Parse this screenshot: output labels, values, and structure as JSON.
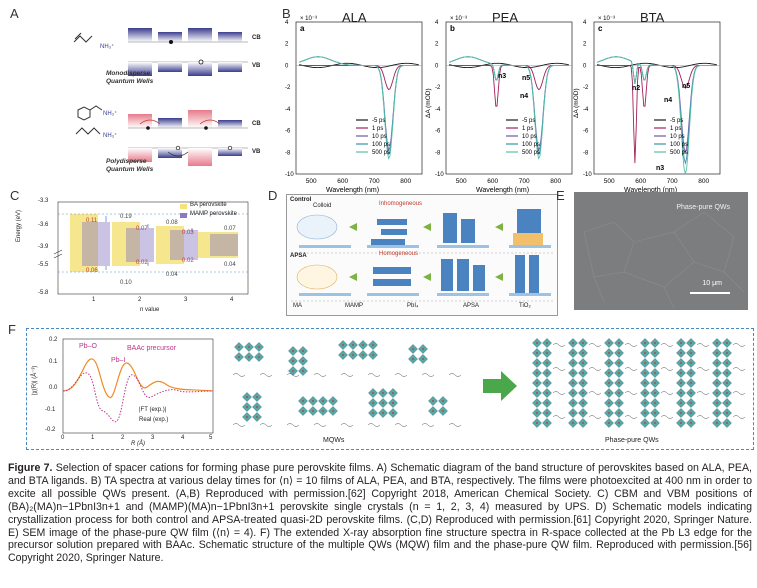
{
  "panels": {
    "a": {
      "letter": "A",
      "band_cb": "CB",
      "band_vb": "VB",
      "mono_label_1": "Monodisperse",
      "mono_label_2": "Quantum Wells",
      "poly_label_1": "Polydisperse",
      "poly_label_2": "Quantum Wells",
      "ligand_amine": "NH₃⁺"
    },
    "b": {
      "letter": "B",
      "titles": [
        "ALA",
        "PEA",
        "BTA"
      ],
      "sublabels": [
        "a",
        "b",
        "c"
      ],
      "scale_label": "× 10⁻³",
      "ylabel": "ΔA (mOD)",
      "xlabel": "Wavelength (nm)",
      "xticks": [
        "500",
        "600",
        "700",
        "800"
      ],
      "yticks": [
        "4",
        "2",
        "0",
        "-2",
        "-4",
        "-6",
        "-8",
        "-10"
      ],
      "legend": [
        "-5 ps",
        "1 ps",
        "10 ps",
        "100 ps",
        "500 ps"
      ],
      "pea_annotations": [
        "n3",
        "n5",
        "n4"
      ],
      "bta_annotations": [
        "n2",
        "n4",
        "n5",
        "n3"
      ]
    },
    "c": {
      "letter": "C",
      "ylabel": "Energy (eV)",
      "xlabel": "n value",
      "yticks": [
        "-3.3",
        "-3.6",
        "-3.9",
        "-5.5",
        "-5.8"
      ],
      "xticks": [
        "1",
        "2",
        "3",
        "4"
      ],
      "legend": [
        "BA perovskite",
        "MAMP perovskite"
      ],
      "values_top": [
        "0.11",
        "0.19",
        "0.07",
        "0.08",
        "0.03",
        "0.07"
      ],
      "values_bottom": [
        "0.06",
        "0.02",
        "0.02",
        "0.10",
        "0.04",
        "0.04"
      ]
    },
    "d": {
      "letter": "D",
      "row1": "Control",
      "row1_sub": "Colloid",
      "row1_title": "Inhomogeneous",
      "row2": "APSA",
      "row2_title": "Homogeneous",
      "legend": [
        "MA",
        "MAMP",
        "PbI₄",
        "APSA",
        "TiO₂"
      ]
    },
    "e": {
      "letter": "E",
      "title": "Phase-pure QWs",
      "scale": "10 μm"
    },
    "f": {
      "letter": "F",
      "ylabel": "|χ(R)| (Å⁻³)",
      "xlabel": "R (Å)",
      "yticks": [
        "0.2",
        "0.1",
        "0.0",
        "-0.1",
        "-0.2"
      ],
      "xticks": [
        "0",
        "1",
        "2",
        "3",
        "4",
        "5"
      ],
      "label_pbo": "Pb–O",
      "label_pbi": "Pb–I",
      "title": "BAAc precursor",
      "legend": [
        "|FT (exp.)|",
        "Real (exp.)"
      ],
      "mqw_label": "MQWs",
      "pp_label": "Phase-pure QWs"
    }
  },
  "colors": {
    "cb_blue": "#3b3d8e",
    "pink": "#e77a8a",
    "arrow_green": "#4aa84a",
    "frame_blue": "#4a86c5",
    "orange": "#f08a24",
    "magenta": "#c0338a",
    "ba_yellow": "#f5e27a",
    "mamp_purple": "#8a7bc0",
    "curves": [
      "#1a1a1a",
      "#a41f5a",
      "#6b5aa8",
      "#3d8fb0",
      "#58c0a8"
    ]
  },
  "caption": {
    "lead": "Figure 7.",
    "text": " Selection of spacer cations for forming phase pure perovskite films. A) Schematic diagram of the band structure of perovskites based on ALA, PEA, and BTA ligands. B) TA spectra at various delay times for ⟨n⟩ = 10 films of ALA, PEA, and BTA, respectively. The films were photoexcited at 400 nm in order to excite all possible QWs present. (A,B) Reproduced with permission.[62] Copyright 2018, American Chemical Society. C) CBM and VBM positions of (BA)₂(MA)n−1PbnI3n+1 and (MAMP)(MA)n−1PbnI3n+1 perovskite single crystals (n = 1, 2, 3, 4) measured by UPS. D) Schematic models indicating crystallization process for both control and APSA-treated quasi-2D perovskite films. (C,D) Reproduced with permission.[61] Copyright 2020, Springer Nature. E) SEM image of the phase-pure QW film (⟨n⟩ = 4). F) The extended X-ray absorption fine structure spectra in R-space collected at the Pb L3 edge for the precursor solution prepared with BAAc. Schematic structure of the multiple QWs (MQW) film and the phase-pure QW film. Reproduced with permission.[56] Copyright 2020, Springer Nature."
  }
}
